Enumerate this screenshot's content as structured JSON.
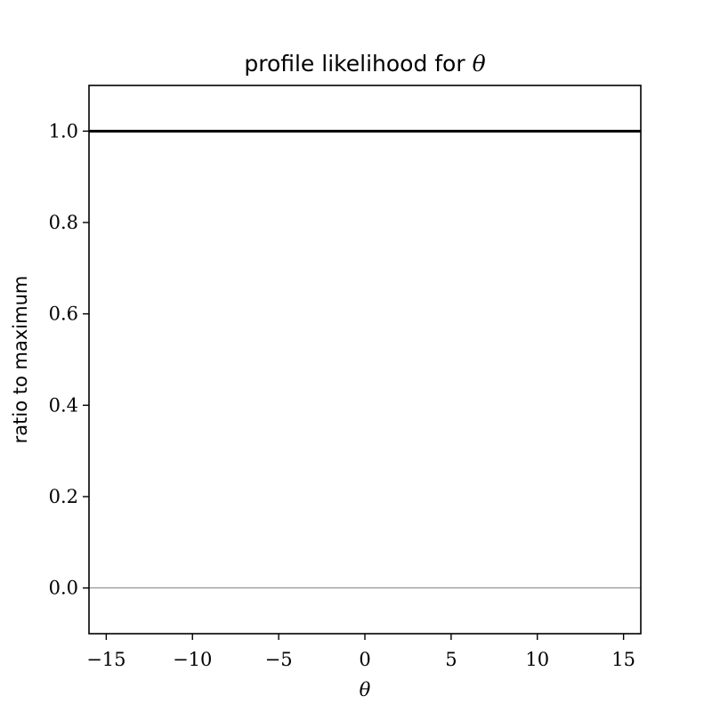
{
  "chart_data": {
    "type": "line",
    "title": "profile likelihood for",
    "title_symbol": "θ",
    "xlabel": "θ",
    "ylabel": "ratio to maximum",
    "xlim": [
      -16,
      16
    ],
    "ylim": [
      -0.1,
      1.1
    ],
    "xticks": [
      -15,
      -10,
      -5,
      0,
      5,
      10,
      15
    ],
    "xtick_labels": [
      "−15",
      "−10",
      "−5",
      "0",
      "5",
      "10",
      "15"
    ],
    "yticks": [
      0.0,
      0.2,
      0.4,
      0.6,
      0.8,
      1.0
    ],
    "ytick_labels": [
      "0.0",
      "0.2",
      "0.4",
      "0.6",
      "0.8",
      "1.0"
    ],
    "grid": false,
    "series": [
      {
        "x": [
          -16,
          16
        ],
        "y": [
          1.0,
          1.0
        ],
        "color": "#000000"
      }
    ],
    "reference_lines": [
      {
        "y": 0.0,
        "color": "#808080"
      }
    ]
  }
}
